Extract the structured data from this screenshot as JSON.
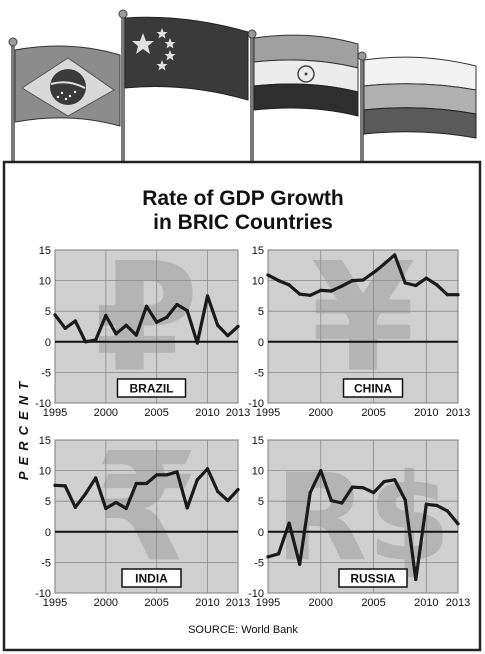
{
  "title_line1": "Rate of GDP Growth",
  "title_line2": "in BRIC Countries",
  "ylabel": "PERCENT",
  "source": "SOURCE: World Bank",
  "flags": [
    {
      "name": "brazil-flag-icon"
    },
    {
      "name": "china-flag-icon"
    },
    {
      "name": "india-flag-icon"
    },
    {
      "name": "russia-flag-icon"
    }
  ],
  "colors": {
    "plot_bg": "#cfcfcf",
    "line": "#1a1a1a",
    "watermark": "#b4b4b4",
    "frame": "#222222"
  },
  "chart_data": [
    {
      "type": "line",
      "label": "BRAZIL",
      "watermark": "₽",
      "x": [
        1995,
        1996,
        1997,
        1998,
        1999,
        2000,
        2001,
        2002,
        2003,
        2004,
        2005,
        2006,
        2007,
        2008,
        2009,
        2010,
        2011,
        2012,
        2013
      ],
      "values": [
        4.4,
        2.2,
        3.4,
        0.0,
        0.3,
        4.3,
        1.3,
        2.7,
        1.1,
        5.8,
        3.2,
        4.0,
        6.1,
        5.1,
        -0.2,
        7.5,
        2.7,
        1.0,
        2.5
      ],
      "ylim": [
        -10,
        15
      ],
      "yticks": [
        "15",
        "10",
        "5",
        "0",
        "-5",
        "-10"
      ],
      "xticks": [
        "1995",
        "2000",
        "2005",
        "2010",
        "2013"
      ]
    },
    {
      "type": "line",
      "label": "CHINA",
      "watermark": "¥",
      "x": [
        1995,
        1996,
        1997,
        1998,
        1999,
        2000,
        2001,
        2002,
        2003,
        2004,
        2005,
        2006,
        2007,
        2008,
        2009,
        2010,
        2011,
        2012,
        2013
      ],
      "values": [
        10.9,
        10.0,
        9.3,
        7.8,
        7.6,
        8.4,
        8.3,
        9.1,
        10.0,
        10.1,
        11.3,
        12.7,
        14.2,
        9.6,
        9.2,
        10.4,
        9.3,
        7.7,
        7.7
      ],
      "ylim": [
        -10,
        15
      ],
      "yticks": [
        "15",
        "10",
        "5",
        "0",
        "-5",
        "-10"
      ],
      "xticks": [
        "1995",
        "2000",
        "2005",
        "2010",
        "2013"
      ]
    },
    {
      "type": "line",
      "label": "INDIA",
      "watermark": "₹",
      "x": [
        1995,
        1996,
        1997,
        1998,
        1999,
        2000,
        2001,
        2002,
        2003,
        2004,
        2005,
        2006,
        2007,
        2008,
        2009,
        2010,
        2011,
        2012,
        2013
      ],
      "values": [
        7.6,
        7.5,
        4.0,
        6.2,
        8.8,
        3.8,
        4.8,
        3.8,
        7.9,
        7.9,
        9.3,
        9.3,
        9.8,
        3.9,
        8.5,
        10.3,
        6.6,
        5.1,
        6.9
      ],
      "ylim": [
        -10,
        15
      ],
      "yticks": [
        "15",
        "10",
        "5",
        "0",
        "-5",
        "-10"
      ],
      "xticks": [
        "1995",
        "2000",
        "2005",
        "2010",
        "2013"
      ]
    },
    {
      "type": "line",
      "label": "RUSSIA",
      "watermark": "R$",
      "x": [
        1995,
        1996,
        1997,
        1998,
        1999,
        2000,
        2001,
        2002,
        2003,
        2004,
        2005,
        2006,
        2007,
        2008,
        2009,
        2010,
        2011,
        2012,
        2013
      ],
      "values": [
        -4.1,
        -3.6,
        1.4,
        -5.3,
        6.4,
        10.0,
        5.1,
        4.7,
        7.3,
        7.2,
        6.4,
        8.2,
        8.5,
        5.2,
        -7.8,
        4.5,
        4.3,
        3.4,
        1.3
      ],
      "ylim": [
        -10,
        15
      ],
      "yticks": [
        "15",
        "10",
        "5",
        "0",
        "-5",
        "-10"
      ],
      "xticks": [
        "1995",
        "2000",
        "2005",
        "2010",
        "2013"
      ]
    }
  ]
}
